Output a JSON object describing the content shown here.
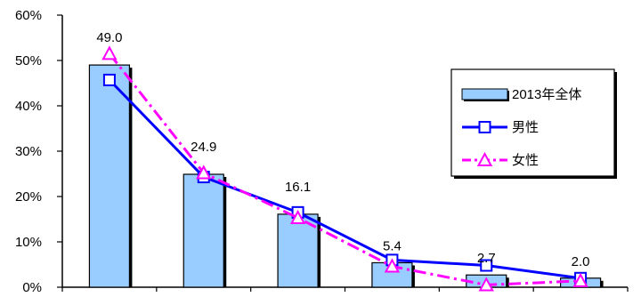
{
  "chart_data": {
    "type": "bar",
    "categories": [
      "",
      "",
      "",
      "",
      "",
      ""
    ],
    "y_ticks": [
      "0%",
      "10%",
      "20%",
      "30%",
      "40%",
      "50%",
      "60%"
    ],
    "ylim": [
      0,
      60
    ],
    "grid": false,
    "legend_placement": "right",
    "series": [
      {
        "name": "2013年全体",
        "kind": "bar",
        "values": [
          49.0,
          24.9,
          16.1,
          5.4,
          2.7,
          2.0
        ],
        "labels": [
          "49.0",
          "24.9",
          "16.1",
          "5.4",
          "2.7",
          "2.0"
        ],
        "color": "#99CCFF"
      },
      {
        "name": "男性",
        "kind": "line",
        "marker": "square",
        "values": [
          45.7,
          24.3,
          16.5,
          6.0,
          4.8,
          2.0
        ],
        "color": "#0000FF"
      },
      {
        "name": "女性",
        "kind": "line",
        "marker": "triangle",
        "values": [
          51.5,
          25.2,
          15.3,
          4.6,
          0.5,
          1.4
        ],
        "color": "#FF00FF"
      }
    ]
  }
}
